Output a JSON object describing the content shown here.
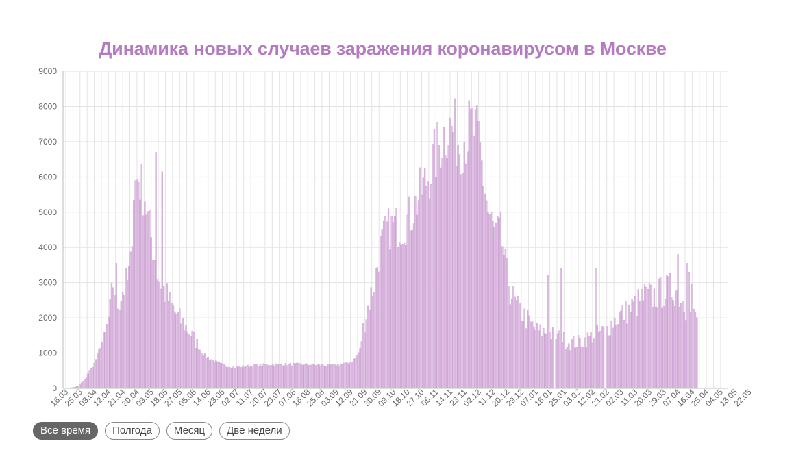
{
  "chart_data": {
    "type": "bar",
    "title": "Динамика новых случаев заражения коронавирусом в Москве",
    "xlabel": "",
    "ylabel": "",
    "ylim": [
      0,
      9000
    ],
    "yticks": [
      0,
      1000,
      2000,
      3000,
      4000,
      5000,
      6000,
      7000,
      8000,
      9000
    ],
    "grid": true,
    "bar_color": "#dfc1e3",
    "bar_edge_color": "#c596cc",
    "x_tick_labels": [
      "16.03",
      "25.03",
      "03.04",
      "12.04",
      "21.04",
      "30.04",
      "09.05",
      "18.05",
      "27.05",
      "05.06",
      "14.06",
      "23.06",
      "02.07",
      "11.07",
      "20.07",
      "29.07",
      "07.08",
      "16.08",
      "25.08",
      "03.09",
      "12.09",
      "21.09",
      "30.09",
      "09.10",
      "18.10",
      "27.10",
      "05.11",
      "14.11",
      "23.11",
      "02.12",
      "11.12",
      "20.12",
      "29.12",
      "07.01",
      "16.01",
      "25.01",
      "03.02",
      "12.02",
      "21.02",
      "02.03",
      "11.03",
      "20.03",
      "29.03",
      "07.04",
      "16.04",
      "25.04",
      "04.05",
      "13.05",
      "22.05"
    ],
    "x_tick_step_days": 9,
    "shape_keyframes": [
      [
        0,
        0
      ],
      [
        4,
        20
      ],
      [
        8,
        60
      ],
      [
        12,
        250
      ],
      [
        15,
        500
      ],
      [
        18,
        700
      ],
      [
        22,
        1200
      ],
      [
        25,
        1500
      ],
      [
        28,
        2200
      ],
      [
        30,
        3000
      ],
      [
        33,
        2400
      ],
      [
        36,
        2800
      ],
      [
        39,
        3000
      ],
      [
        41,
        3500
      ],
      [
        43,
        5700
      ],
      [
        46,
        6000
      ],
      [
        48,
        5700
      ],
      [
        50,
        5500
      ],
      [
        52,
        4800
      ],
      [
        55,
        4000
      ],
      [
        58,
        3200
      ],
      [
        61,
        2900
      ],
      [
        64,
        2600
      ],
      [
        67,
        2300
      ],
      [
        70,
        2100
      ],
      [
        73,
        1900
      ],
      [
        77,
        1700
      ],
      [
        81,
        1400
      ],
      [
        85,
        1100
      ],
      [
        89,
        900
      ],
      [
        93,
        800
      ],
      [
        97,
        700
      ],
      [
        102,
        630
      ],
      [
        107,
        600
      ],
      [
        113,
        620
      ],
      [
        120,
        660
      ],
      [
        135,
        680
      ],
      [
        150,
        680
      ],
      [
        165,
        650
      ],
      [
        175,
        680
      ],
      [
        180,
        750
      ],
      [
        183,
        850
      ],
      [
        186,
        1100
      ],
      [
        188,
        1700
      ],
      [
        191,
        2300
      ],
      [
        195,
        3000
      ],
      [
        199,
        4000
      ],
      [
        203,
        4500
      ],
      [
        208,
        4600
      ],
      [
        213,
        4600
      ],
      [
        218,
        4900
      ],
      [
        223,
        5400
      ],
      [
        228,
        5900
      ],
      [
        233,
        6500
      ],
      [
        237,
        7000
      ],
      [
        241,
        7400
      ],
      [
        245,
        7300
      ],
      [
        249,
        7000
      ],
      [
        253,
        7200
      ],
      [
        257,
        7400
      ],
      [
        261,
        7000
      ],
      [
        264,
        6000
      ],
      [
        267,
        5000
      ],
      [
        271,
        4400
      ],
      [
        275,
        4400
      ],
      [
        278,
        3500
      ],
      [
        281,
        2800
      ],
      [
        285,
        2300
      ],
      [
        289,
        2100
      ],
      [
        294,
        1800
      ],
      [
        299,
        1600
      ],
      [
        304,
        1600
      ],
      [
        309,
        1500
      ],
      [
        314,
        1400
      ],
      [
        319,
        1300
      ],
      [
        324,
        1300
      ],
      [
        329,
        1400
      ],
      [
        334,
        1500
      ],
      [
        339,
        1600
      ],
      [
        342,
        1700
      ],
      [
        346,
        1900
      ],
      [
        351,
        2100
      ],
      [
        356,
        2200
      ],
      [
        361,
        2400
      ],
      [
        366,
        2600
      ],
      [
        371,
        2600
      ],
      [
        376,
        2700
      ],
      [
        381,
        2800
      ],
      [
        386,
        2800
      ],
      [
        390,
        2500
      ],
      [
        394,
        2100
      ],
      [
        398,
        2000
      ]
    ],
    "sharp_peaks": [
      [
        32,
        3550
      ],
      [
        57,
        6700
      ],
      [
        61,
        6150
      ],
      [
        305,
        3200
      ],
      [
        313,
        3400
      ],
      [
        335,
        3400
      ],
      [
        387,
        3800
      ],
      [
        393,
        3550
      ],
      [
        394,
        3300
      ],
      [
        396,
        2950
      ]
    ],
    "approx_daily_values_note": ""
  },
  "controls": {
    "range_buttons": [
      {
        "label": "Все время",
        "active": true
      },
      {
        "label": "Полгода",
        "active": false
      },
      {
        "label": "Месяц",
        "active": false
      },
      {
        "label": "Две недели",
        "active": false
      }
    ]
  }
}
